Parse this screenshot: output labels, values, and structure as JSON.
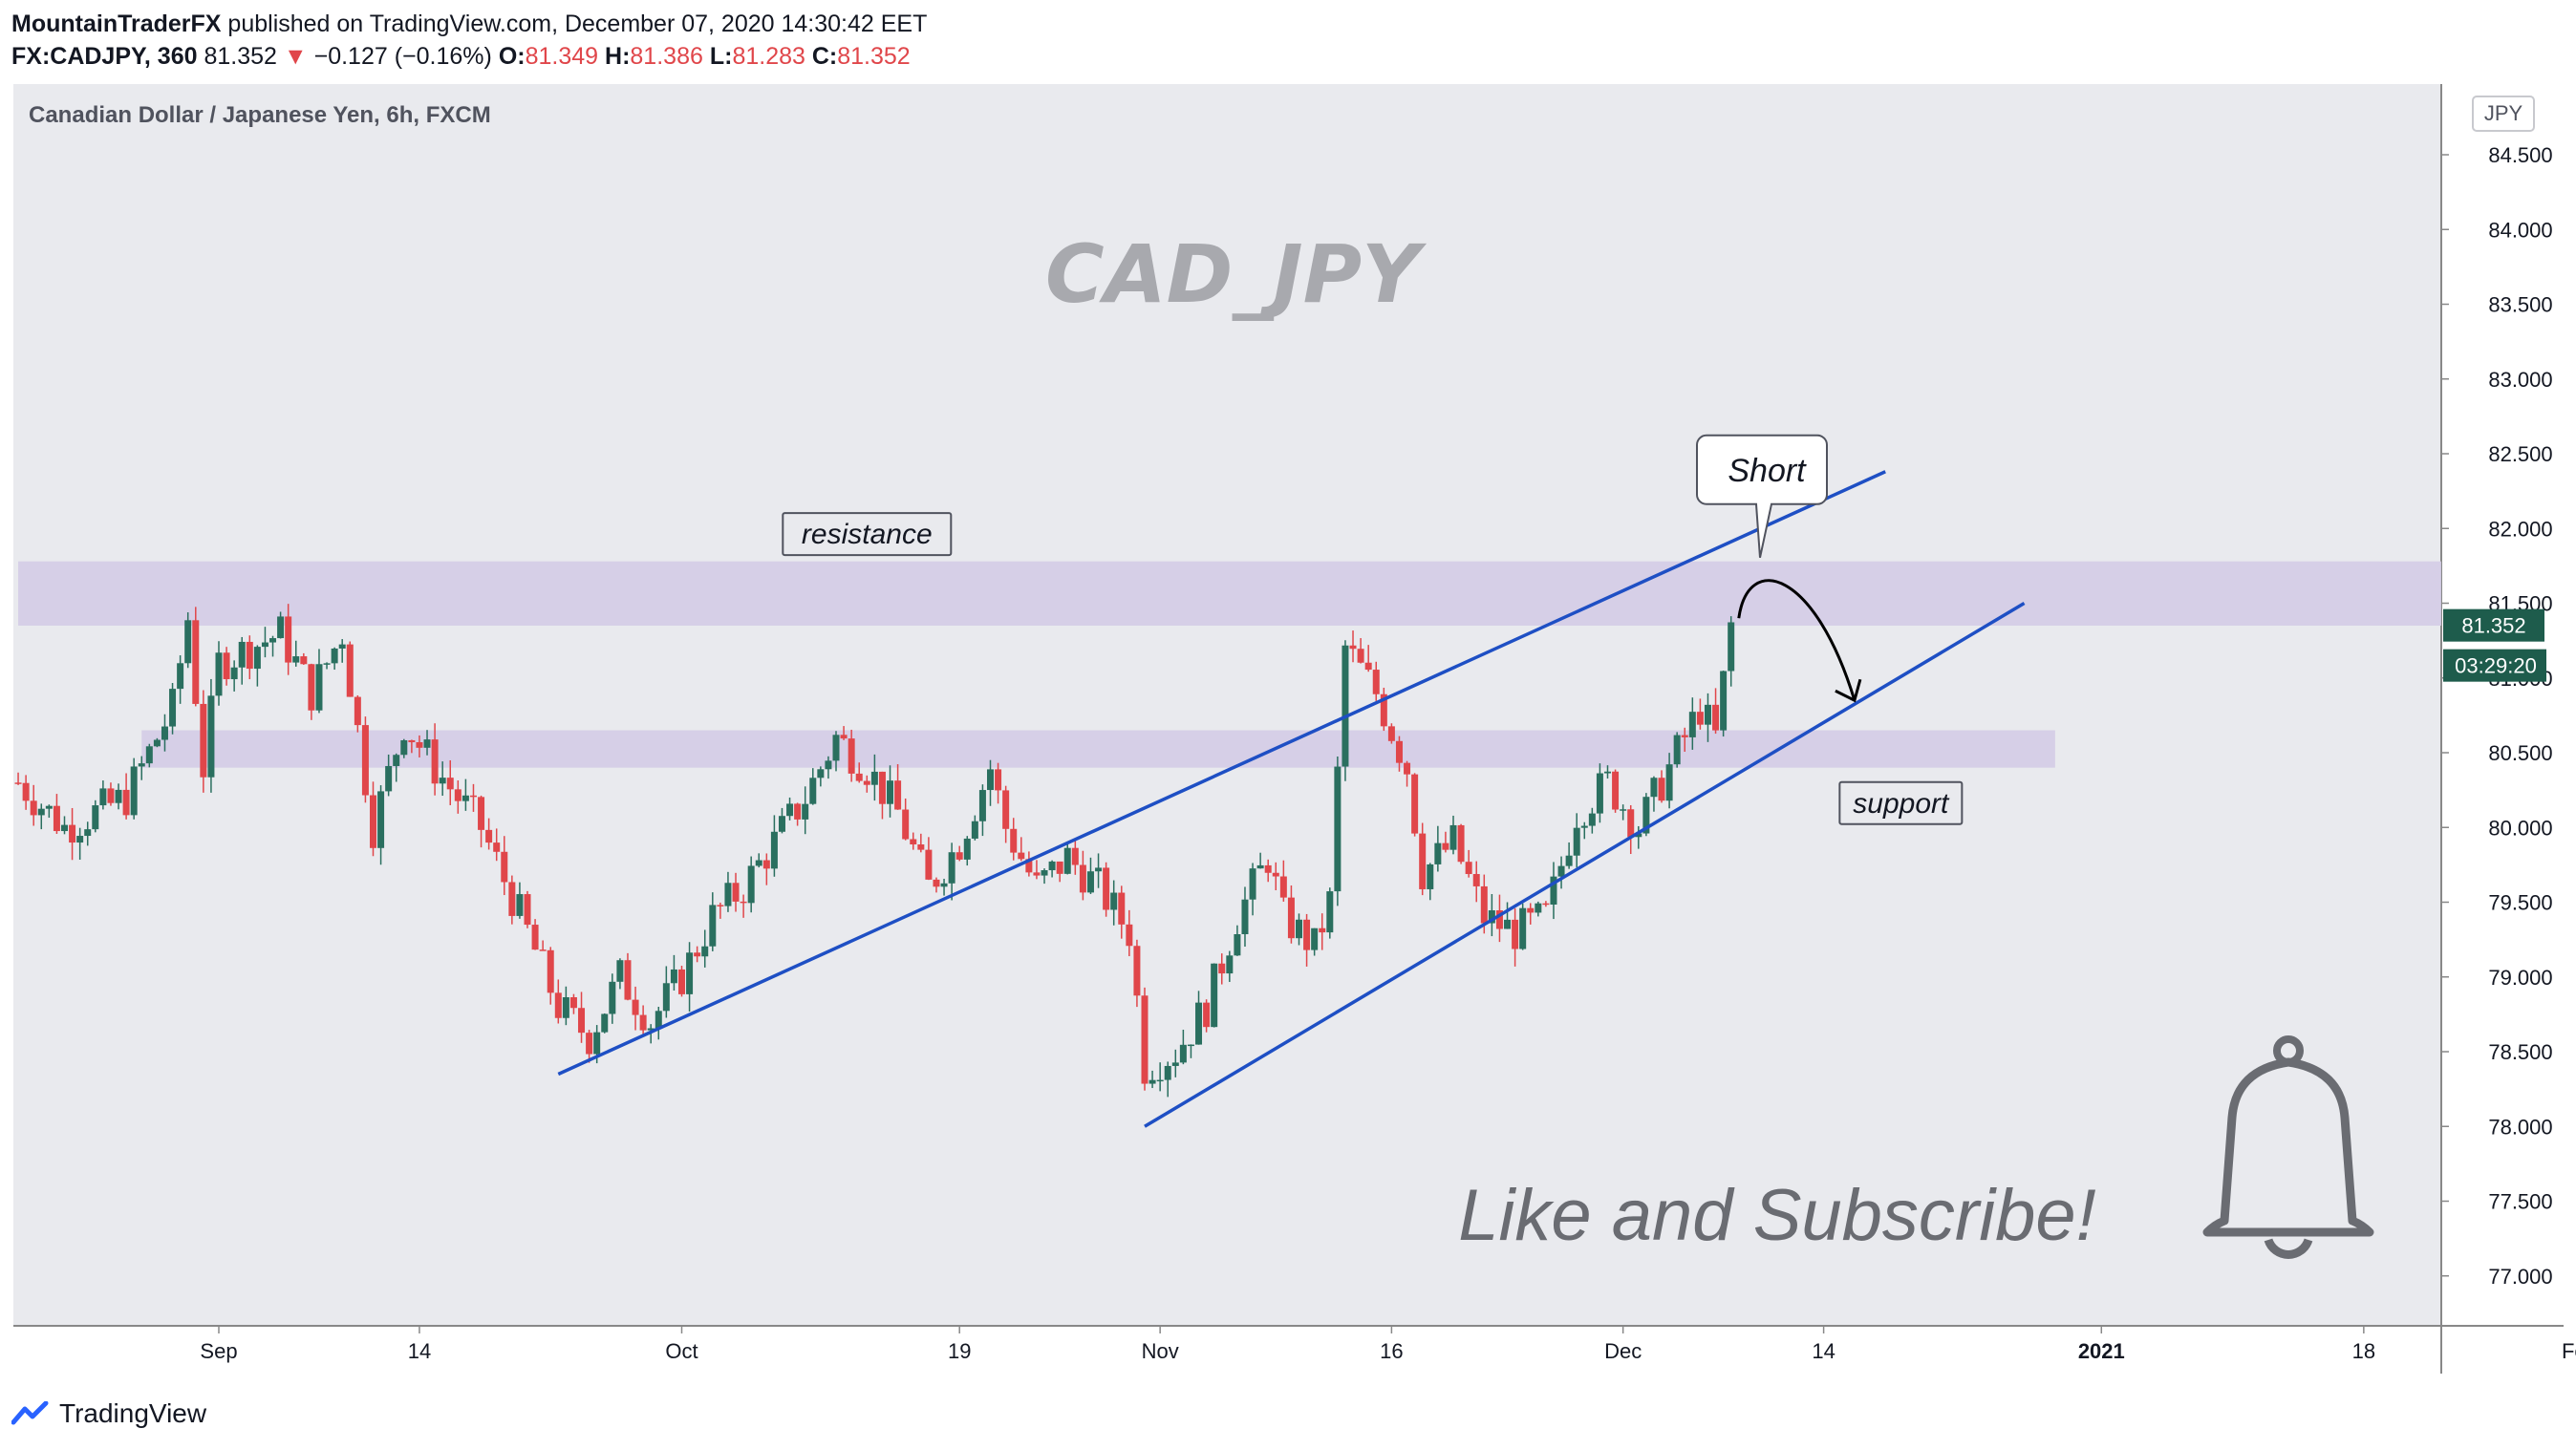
{
  "header": {
    "author": "MountainTraderFX",
    "published_text": "published on TradingView.com, December 07, 2020 14:30:42 EET",
    "symbol": "FX:CADJPY, 360",
    "last": "81.352",
    "change_arrow": "▼",
    "change": "−0.127 (−0.16%)",
    "o_label": "O:",
    "o_val": "81.349",
    "h_label": "H:",
    "h_val": "81.386",
    "l_label": "L:",
    "l_val": "81.283",
    "c_label": "C:",
    "c_val": "81.352"
  },
  "chart_data": {
    "type": "candlestick",
    "title": "Canadian Dollar / Japanese Yen, 6h, FXCM",
    "watermark": "CAD_JPY",
    "currency": "JPY",
    "ylim": [
      76.7,
      84.9
    ],
    "yticks": [
      "84.500",
      "84.000",
      "83.500",
      "83.000",
      "82.500",
      "82.000",
      "81.500",
      "81.000",
      "80.500",
      "80.000",
      "79.500",
      "79.000",
      "78.500",
      "78.000",
      "77.500",
      "77.000"
    ],
    "xticks": [
      {
        "label": "Sep",
        "day": 0
      },
      {
        "label": "14",
        "day": 13
      },
      {
        "label": "Oct",
        "day": 30
      },
      {
        "label": "19",
        "day": 48
      },
      {
        "label": "Nov",
        "day": 61
      },
      {
        "label": "16",
        "day": 76
      },
      {
        "label": "Dec",
        "day": 91
      },
      {
        "label": "14",
        "day": 104
      },
      {
        "label": "2021",
        "day": 122
      },
      {
        "label": "18",
        "day": 139
      },
      {
        "label": "Feb",
        "day": 153
      }
    ],
    "x_range_days": [
      -13,
      155
    ],
    "price_label": "81.352",
    "countdown": "03:29:20",
    "close_path": [
      {
        "day": -13,
        "price": 80.3
      },
      {
        "day": -10,
        "price": 80.0
      },
      {
        "day": -6,
        "price": 80.2
      },
      {
        "day": -3,
        "price": 80.8
      },
      {
        "day": -2,
        "price": 81.4
      },
      {
        "day": -1,
        "price": 80.4
      },
      {
        "day": 0,
        "price": 81.1
      },
      {
        "day": 2,
        "price": 81.2
      },
      {
        "day": 4,
        "price": 81.3
      },
      {
        "day": 6,
        "price": 80.9
      },
      {
        "day": 8,
        "price": 81.3
      },
      {
        "day": 10,
        "price": 80.0
      },
      {
        "day": 12,
        "price": 80.7
      },
      {
        "day": 14,
        "price": 80.4
      },
      {
        "day": 17,
        "price": 80.0
      },
      {
        "day": 20,
        "price": 79.3
      },
      {
        "day": 22,
        "price": 78.8
      },
      {
        "day": 24,
        "price": 78.6
      },
      {
        "day": 26,
        "price": 79.0
      },
      {
        "day": 28,
        "price": 78.7
      },
      {
        "day": 30,
        "price": 79.0
      },
      {
        "day": 32,
        "price": 79.4
      },
      {
        "day": 34,
        "price": 79.6
      },
      {
        "day": 36,
        "price": 79.9
      },
      {
        "day": 38,
        "price": 80.2
      },
      {
        "day": 40,
        "price": 80.6
      },
      {
        "day": 42,
        "price": 80.4
      },
      {
        "day": 44,
        "price": 80.1
      },
      {
        "day": 46,
        "price": 79.6
      },
      {
        "day": 48,
        "price": 79.9
      },
      {
        "day": 50,
        "price": 80.4
      },
      {
        "day": 51,
        "price": 80.0
      },
      {
        "day": 53,
        "price": 79.6
      },
      {
        "day": 55,
        "price": 79.8
      },
      {
        "day": 57,
        "price": 79.6
      },
      {
        "day": 59,
        "price": 79.3
      },
      {
        "day": 60,
        "price": 78.4
      },
      {
        "day": 62,
        "price": 78.5
      },
      {
        "day": 64,
        "price": 78.8
      },
      {
        "day": 66,
        "price": 79.4
      },
      {
        "day": 68,
        "price": 79.8
      },
      {
        "day": 69,
        "price": 79.4
      },
      {
        "day": 71,
        "price": 79.2
      },
      {
        "day": 72,
        "price": 79.5
      },
      {
        "day": 73,
        "price": 81.2
      },
      {
        "day": 75,
        "price": 80.9
      },
      {
        "day": 77,
        "price": 80.4
      },
      {
        "day": 78,
        "price": 79.7
      },
      {
        "day": 80,
        "price": 79.9
      },
      {
        "day": 82,
        "price": 79.4
      },
      {
        "day": 84,
        "price": 79.3
      },
      {
        "day": 86,
        "price": 79.4
      },
      {
        "day": 88,
        "price": 80.1
      },
      {
        "day": 90,
        "price": 80.3
      },
      {
        "day": 92,
        "price": 80.0
      },
      {
        "day": 94,
        "price": 80.4
      },
      {
        "day": 96,
        "price": 80.8
      },
      {
        "day": 97,
        "price": 80.6
      },
      {
        "day": 98,
        "price": 81.35
      }
    ],
    "zones": [
      {
        "name": "resistance",
        "low": 81.35,
        "high": 81.78,
        "day_from": -13,
        "day_to": 155
      },
      {
        "name": "support",
        "low": 80.4,
        "high": 80.65,
        "day_from": -5,
        "day_to": 119
      }
    ],
    "trendlines": [
      {
        "from": {
          "day": 22,
          "price": 78.35
        },
        "to": {
          "day": 108,
          "price": 82.38
        }
      },
      {
        "from": {
          "day": 60,
          "price": 78.0
        },
        "to": {
          "day": 117,
          "price": 81.5
        }
      }
    ],
    "annotations": {
      "resistance": {
        "text": "resistance",
        "day": 42,
        "price": 81.95
      },
      "support": {
        "text": "support",
        "day": 109,
        "price": 80.15
      },
      "short": {
        "text": "Short",
        "day": 100,
        "price": 82.38
      },
      "cta": "Like and Subscribe!"
    },
    "colors": {
      "up": "#2a6f5f",
      "down": "#e0464a",
      "zone": "#d4cce6",
      "trend": "#1e4fc4",
      "bg": "#e9eaee"
    }
  },
  "footer": {
    "brand": "TradingView"
  }
}
